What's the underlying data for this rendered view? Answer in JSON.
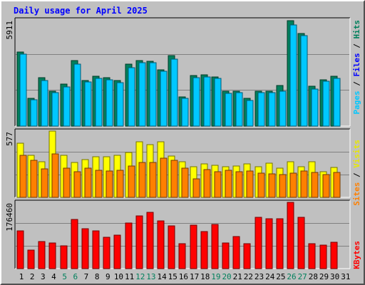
{
  "chart_data": [
    {
      "type": "bar",
      "title": "Daily usage for April 2025",
      "categories": [
        "1",
        "2",
        "3",
        "4",
        "5",
        "6",
        "7",
        "8",
        "9",
        "10",
        "11",
        "12",
        "13",
        "14",
        "15",
        "16",
        "17",
        "18",
        "19",
        "20",
        "21",
        "22",
        "23",
        "24",
        "25",
        "26",
        "27",
        "28",
        "29",
        "30",
        "31"
      ],
      "weekend_days": [
        "5",
        "6",
        "12",
        "13",
        "19",
        "20",
        "26",
        "27"
      ],
      "ymax_label": "5911",
      "ymax": 5911,
      "grid": true,
      "series": [
        {
          "name": "Hits",
          "color": "#00805c",
          "values": [
            4120,
            1540,
            2700,
            1930,
            2360,
            3630,
            2550,
            2780,
            2710,
            2550,
            3440,
            3660,
            3610,
            3140,
            3910,
            1630,
            2830,
            2850,
            2740,
            1930,
            1930,
            1560,
            1930,
            1930,
            2250,
            5860,
            5150,
            2220,
            2580,
            2770,
            null
          ]
        },
        {
          "name": "Pages",
          "color": "#00c8ff",
          "values": [
            4020,
            1480,
            2530,
            1850,
            2200,
            3450,
            2440,
            2640,
            2560,
            2430,
            3260,
            3540,
            3520,
            3070,
            3710,
            1560,
            2700,
            2720,
            2650,
            1830,
            1860,
            1440,
            1860,
            1870,
            1930,
            5650,
            5040,
            2070,
            2480,
            2650,
            null
          ]
        }
      ]
    },
    {
      "type": "bar",
      "ymax_label": "577",
      "ymax": 577,
      "grid": true,
      "series": [
        {
          "name": "Visits",
          "color": "#ffff00",
          "values": [
            473,
            367,
            312,
            577,
            363,
            307,
            330,
            356,
            354,
            364,
            388,
            483,
            457,
            482,
            357,
            312,
            268,
            289,
            279,
            268,
            275,
            289,
            268,
            300,
            252,
            311,
            268,
            313,
            221,
            263,
            null
          ]
        },
        {
          "name": "Sites",
          "color": "#ff8000",
          "values": [
            367,
            324,
            250,
            380,
            254,
            225,
            252,
            234,
            232,
            233,
            271,
            302,
            304,
            340,
            321,
            253,
            161,
            245,
            225,
            233,
            224,
            231,
            213,
            203,
            198,
            208,
            228,
            217,
            200,
            216,
            null
          ]
        }
      ]
    },
    {
      "type": "bar",
      "ymax_label": "176460",
      "ymax": 176460,
      "grid": true,
      "series": [
        {
          "name": "KBytes",
          "color": "#ff0000",
          "values": [
            101000,
            49000,
            73000,
            69000,
            60000,
            131000,
            106000,
            101000,
            83000,
            90000,
            122000,
            140000,
            149000,
            127000,
            114000,
            66000,
            116000,
            98000,
            117000,
            68000,
            85000,
            66000,
            137000,
            132000,
            133000,
            176460,
            136000,
            66000,
            63000,
            70000,
            null
          ]
        }
      ]
    }
  ],
  "legend": {
    "top": [
      {
        "text": "Pages",
        "color": "#00c8ff"
      },
      {
        "text": " / ",
        "color": "#000000"
      },
      {
        "text": "Files",
        "color": "#0000ff"
      },
      {
        "text": " / ",
        "color": "#000000"
      },
      {
        "text": "Hits",
        "color": "#00805c"
      }
    ],
    "middle": [
      {
        "text": "Sites",
        "color": "#ff8000"
      },
      {
        "text": " / ",
        "color": "#000000"
      },
      {
        "text": "Visits",
        "color": "#e8e800"
      }
    ],
    "bottom": [
      {
        "text": "KBytes",
        "color": "#ff0000"
      }
    ]
  },
  "colors": {
    "title": "#0000ff",
    "background": "#c0c0c0",
    "weekday_label": "#000000",
    "weekend_label": "#00805c"
  }
}
